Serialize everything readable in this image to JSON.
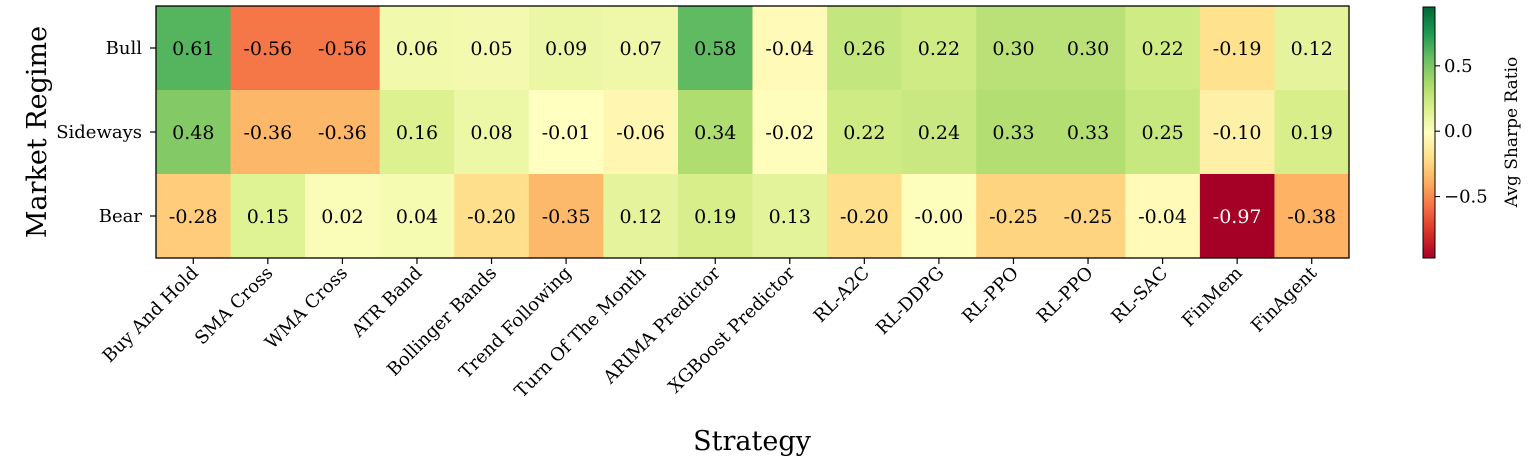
{
  "chart_data": {
    "type": "heatmap",
    "title": "",
    "xlabel": "Strategy",
    "ylabel": "Market Regime",
    "categories": [
      "Buy And Hold",
      "SMA Cross",
      "WMA Cross",
      "ATR Band",
      "Bollinger Bands",
      "Trend Following",
      "Turn Of The Month",
      "ARIMA Predictor",
      "XGBoost Predictor",
      "RL-A2C",
      "RL-DDPG",
      "RL-PPO",
      "RL-PPO",
      "RL-SAC",
      "FinMem",
      "FinAgent"
    ],
    "rows": [
      "Bull",
      "Sideways",
      "Bear"
    ],
    "values": [
      [
        0.61,
        -0.56,
        -0.56,
        0.06,
        0.05,
        0.09,
        0.07,
        0.58,
        -0.04,
        0.26,
        0.22,
        0.3,
        0.3,
        0.22,
        -0.19,
        0.12
      ],
      [
        0.48,
        -0.36,
        -0.36,
        0.16,
        0.08,
        -0.01,
        -0.06,
        0.34,
        -0.02,
        0.22,
        0.24,
        0.33,
        0.33,
        0.25,
        -0.1,
        0.19
      ],
      [
        -0.28,
        0.15,
        0.02,
        0.04,
        -0.2,
        -0.35,
        0.12,
        0.19,
        0.13,
        -0.2,
        -0.0,
        -0.25,
        -0.25,
        -0.04,
        -0.97,
        -0.38
      ]
    ],
    "labels": [
      [
        "0.61",
        "-0.56",
        "-0.56",
        "0.06",
        "0.05",
        "0.09",
        "0.07",
        "0.58",
        "-0.04",
        "0.26",
        "0.22",
        "0.30",
        "0.30",
        "0.22",
        "-0.19",
        "0.12"
      ],
      [
        "0.48",
        "-0.36",
        "-0.36",
        "0.16",
        "0.08",
        "-0.01",
        "-0.06",
        "0.34",
        "-0.02",
        "0.22",
        "0.24",
        "0.33",
        "0.33",
        "0.25",
        "-0.10",
        "0.19"
      ],
      [
        "-0.28",
        "0.15",
        "0.02",
        "0.04",
        "-0.20",
        "-0.35",
        "0.12",
        "0.19",
        "0.13",
        "-0.20",
        "-0.00",
        "-0.25",
        "-0.25",
        "-0.04",
        "-0.97",
        "-0.38"
      ]
    ],
    "colormap": "RdYlGn",
    "vmin": -0.97,
    "vmax": 0.95,
    "colorbar": {
      "label": "Avg Sharpe Ratio",
      "ticks": [
        0.5,
        0.0,
        -0.5
      ],
      "tick_labels": [
        "0.5",
        "0.0",
        "−0.5"
      ]
    }
  }
}
